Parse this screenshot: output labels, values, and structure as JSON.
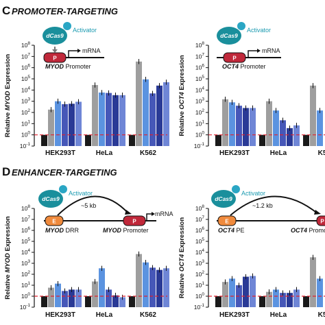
{
  "panels": [
    {
      "letter": "C",
      "title": "PROMOTER-TARGETING",
      "diagram": {
        "activator": "Activator",
        "dcas9": "dCas9",
        "promoter_box": "P",
        "mrna": "mRNA",
        "gene_label_italic": "MYOD",
        "gene_label_rest": " Promoter"
      },
      "diagram_right": {
        "activator": "Activator",
        "dcas9": "dCas9",
        "promoter_box": "P",
        "mrna": "mRNA",
        "gene_label_italic": "OCT4",
        "gene_label_rest": " Promoter"
      }
    },
    {
      "letter": "D",
      "title": "ENHANCER-TARGETING",
      "diagram": {
        "activator": "Activator",
        "dcas9": "dCas9",
        "enhancer_box": "E",
        "promoter_box": "P",
        "distance": "~5 kb",
        "mrna": "mRNA",
        "enhancer_label_italic": "MYOD",
        "enhancer_label_rest": " DRR",
        "gene_label_italic": "MYOD",
        "gene_label_rest": " Promoter"
      },
      "diagram_right": {
        "activator": "Activator",
        "dcas9": "dCas9",
        "enhancer_box": "E",
        "promoter_box": "P",
        "distance": "~1.2 kb",
        "enhancer_label_italic": "OCT4",
        "enhancer_label_rest": " PE",
        "gene_label_italic": "OCT4",
        "gene_label_rest": " Promo"
      }
    }
  ],
  "colors": {
    "control": "#1a1a1a",
    "gray": "#9e9e9e",
    "blue_light": "#6f86d6",
    "blue_mid": "#4657b8",
    "blue_dark": "#2a3a96",
    "blue_pale": "#5b93e0",
    "green": "#3cb54a",
    "dashed_line": "#e0202e",
    "promoter": "#c0283a",
    "enhancer": "#f08a3c",
    "dcas9": "#1a8f9c",
    "activator": "#2aa6c4"
  },
  "chart_data": [
    {
      "type": "bar",
      "panel": "C",
      "ylabel_italic": "MYOD",
      "ylabel_pre": "Relative ",
      "ylabel_post": " Expression",
      "yscale": "log",
      "ylim": [
        0.1,
        100000000
      ],
      "yticks": [
        {
          "b": "10",
          "e": "8"
        },
        {
          "b": "10",
          "e": "7"
        },
        {
          "b": "10",
          "e": "6"
        },
        {
          "b": "10",
          "e": "5"
        },
        {
          "b": "10",
          "e": "4"
        },
        {
          "b": "10",
          "e": "3"
        },
        {
          "b": "10",
          "e": "2"
        },
        {
          "b": "10",
          "e": "1"
        },
        {
          "b": "10",
          "e": "0"
        },
        {
          "b": "10",
          "e": "-1"
        }
      ],
      "categories": [
        "HEK293T",
        "HeLa",
        "K562"
      ],
      "reference_line": 1,
      "groups": [
        [
          1,
          180,
          1000,
          550,
          600,
          900
        ],
        [
          1,
          28000,
          6000,
          5500,
          3500,
          3500
        ],
        [
          1,
          3500000,
          90000,
          5000,
          25000,
          50000
        ]
      ]
    },
    {
      "type": "bar",
      "panel": "C",
      "ylabel_italic": "OCT4",
      "ylabel_pre": "Relative ",
      "ylabel_post": " Expression",
      "yscale": "log",
      "ylim": [
        0.1,
        100000000
      ],
      "yticks": [
        {
          "b": "10",
          "e": "8"
        },
        {
          "b": "10",
          "e": "7"
        },
        {
          "b": "10",
          "e": "6"
        },
        {
          "b": "10",
          "e": "5"
        },
        {
          "b": "10",
          "e": "4"
        },
        {
          "b": "10",
          "e": "3"
        },
        {
          "b": "10",
          "e": "2"
        },
        {
          "b": "10",
          "e": "1"
        },
        {
          "b": "10",
          "e": "0"
        },
        {
          "b": "10",
          "e": "-1"
        }
      ],
      "categories": [
        "HEK293T",
        "HeLa",
        "K5"
      ],
      "reference_line": 1,
      "groups": [
        [
          1,
          1500,
          800,
          400,
          250,
          250
        ],
        [
          1,
          1000,
          150,
          20,
          4,
          7
        ],
        [
          1,
          25000,
          150
        ]
      ]
    },
    {
      "type": "bar",
      "panel": "D",
      "ylabel_italic": "MYOD",
      "ylabel_pre": "Relative ",
      "ylabel_post": " Expression",
      "yscale": "log",
      "ylim": [
        0.1,
        100000000
      ],
      "yticks": [
        {
          "b": "10",
          "e": "8"
        },
        {
          "b": "10",
          "e": "7"
        },
        {
          "b": "10",
          "e": "6"
        },
        {
          "b": "10",
          "e": "5"
        },
        {
          "b": "10",
          "e": "4"
        },
        {
          "b": "10",
          "e": "3"
        },
        {
          "b": "10",
          "e": "2"
        },
        {
          "b": "10",
          "e": "1"
        },
        {
          "b": "10",
          "e": "0"
        },
        {
          "b": "10",
          "e": "-1"
        }
      ],
      "categories": [
        "HEK293T",
        "HeLa",
        "K562"
      ],
      "reference_line": 1,
      "groups": [
        [
          1,
          6,
          14,
          3,
          4,
          4
        ],
        [
          1,
          22,
          350,
          4,
          1.2,
          0.8
        ],
        [
          1,
          7000,
          1200,
          400,
          250,
          350
        ]
      ]
    },
    {
      "type": "bar",
      "panel": "D",
      "ylabel_italic": "OCT4",
      "ylabel_pre": "Relative ",
      "ylabel_post": " Expression",
      "yscale": "log",
      "ylim": [
        0.1,
        100000000
      ],
      "yticks": [
        {
          "b": "10",
          "e": "8"
        },
        {
          "b": "10",
          "e": "7"
        },
        {
          "b": "10",
          "e": "6"
        },
        {
          "b": "10",
          "e": "5"
        },
        {
          "b": "10",
          "e": "4"
        },
        {
          "b": "10",
          "e": "3"
        },
        {
          "b": "10",
          "e": "2"
        },
        {
          "b": "10",
          "e": "1"
        },
        {
          "b": "10",
          "e": "0"
        },
        {
          "b": "10",
          "e": "-1"
        }
      ],
      "categories": [
        "HEK293T",
        "HeLa",
        "K5"
      ],
      "reference_line": 1,
      "groups": [
        [
          1,
          20,
          40,
          10,
          60,
          70
        ],
        [
          1,
          2.5,
          4,
          2,
          2,
          4
        ],
        [
          1,
          3500,
          40
        ]
      ]
    }
  ]
}
